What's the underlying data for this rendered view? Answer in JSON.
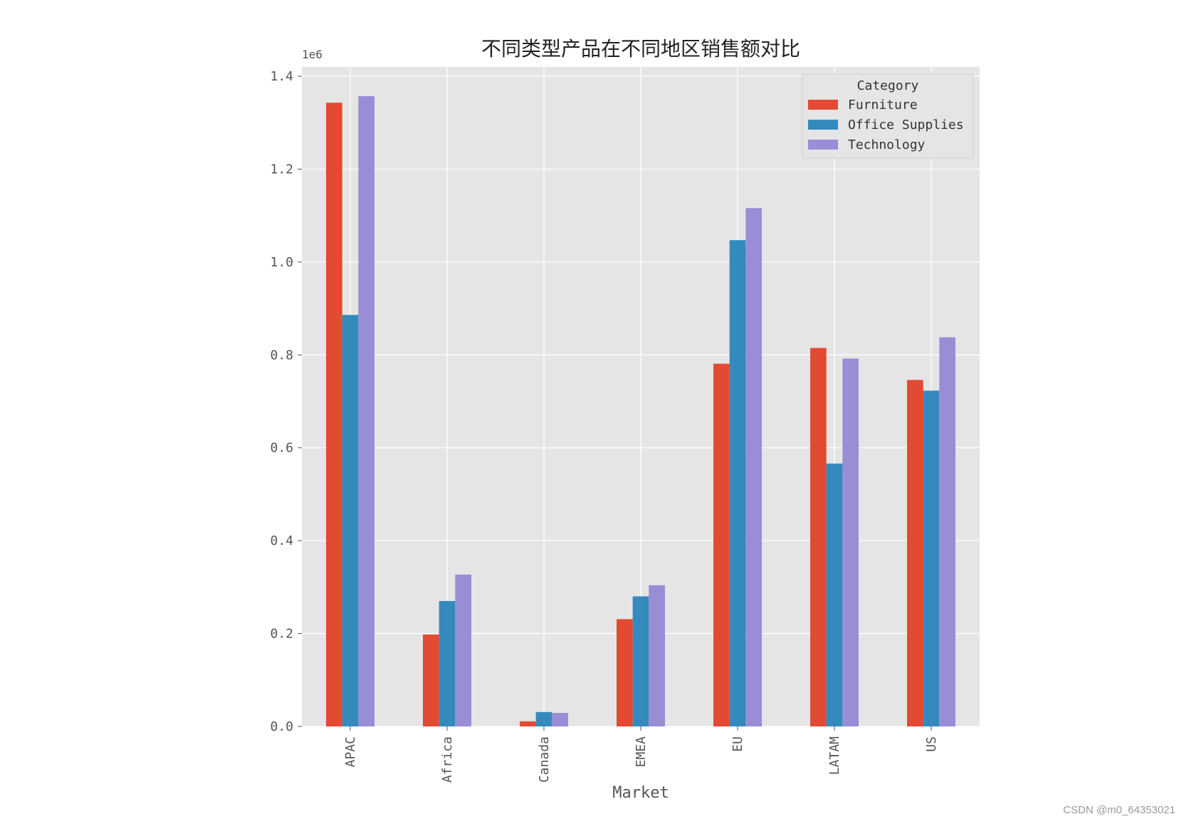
{
  "chart_data": {
    "type": "bar",
    "title": "不同类型产品在不同地区销售额对比",
    "xlabel": "Market",
    "ylabel": "",
    "y_scale_label": "1e6",
    "categories": [
      "APAC",
      "Africa",
      "Canada",
      "EMEA",
      "EU",
      "LATAM",
      "US"
    ],
    "yticks": [
      "0.0",
      "0.2",
      "0.4",
      "0.6",
      "0.8",
      "1.0",
      "1.2",
      "1.4"
    ],
    "ylim": [
      0,
      1.42
    ],
    "grid": true,
    "legend": {
      "title": "Category",
      "placement": "top-right"
    },
    "series": [
      {
        "name": "Furniture",
        "color": "#E24A33",
        "values": [
          1.343,
          0.198,
          0.011,
          0.231,
          0.781,
          0.815,
          0.746
        ]
      },
      {
        "name": "Office Supplies",
        "color": "#348ABD",
        "values": [
          0.886,
          0.27,
          0.031,
          0.28,
          1.047,
          0.566,
          0.723
        ]
      },
      {
        "name": "Technology",
        "color": "#988ED5",
        "values": [
          1.357,
          0.327,
          0.029,
          0.304,
          1.116,
          0.792,
          0.838
        ]
      }
    ]
  },
  "watermark": "CSDN @m0_64353021",
  "colors": {
    "plot_background": "#E5E5E5",
    "grid": "#FFFFFF",
    "text": "#555555"
  }
}
